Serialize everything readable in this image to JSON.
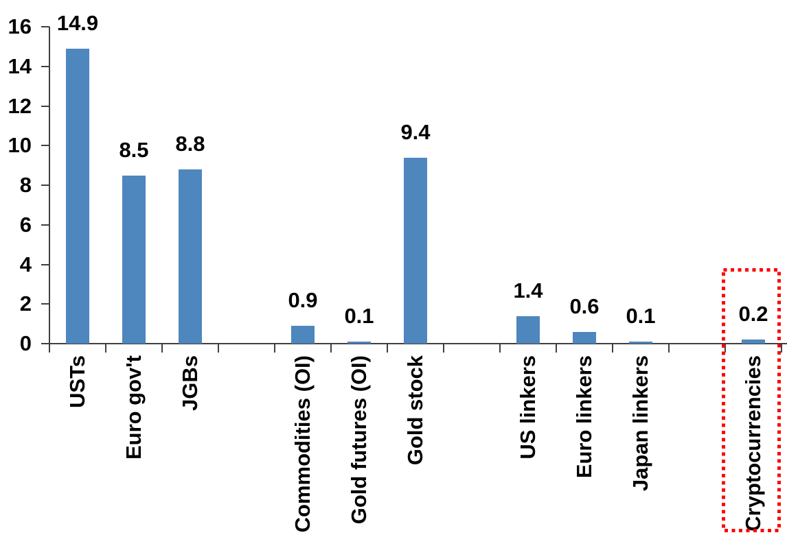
{
  "chart_data": {
    "type": "bar",
    "title": "",
    "xlabel": "",
    "ylabel": "",
    "categories": [
      "USTs",
      "Euro gov't",
      "JGBs",
      "Commodities (OI)",
      "Gold futures (OI)",
      "Gold stock",
      "US linkers",
      "Euro linkers",
      "Japan linkers",
      "Cryptocurrencies"
    ],
    "values": [
      14.9,
      8.5,
      8.8,
      0.9,
      0.1,
      9.4,
      1.4,
      0.6,
      0.1,
      0.2
    ],
    "value_labels": [
      "14.9",
      "8.5",
      "8.8",
      "0.9",
      "0.1",
      "9.4",
      "1.4",
      "0.6",
      "0.1",
      "0.2"
    ],
    "category_slots": [
      0,
      1,
      2,
      4,
      5,
      6,
      8,
      9,
      10,
      12
    ],
    "total_slots": 13,
    "ylim": [
      0,
      16
    ],
    "ytick_labels": [
      "0",
      "2",
      "4",
      "6",
      "8",
      "10",
      "12",
      "14",
      "16"
    ],
    "ytick_step": 2,
    "grid": false,
    "legend_position": "none",
    "bar_color": "#4E86BE",
    "axis_color": "#3F3F3F",
    "label_color": "#000000",
    "highlight": {
      "category": "Cryptocurrencies",
      "style": "red-dotted-box",
      "color": "#FF0000"
    }
  }
}
